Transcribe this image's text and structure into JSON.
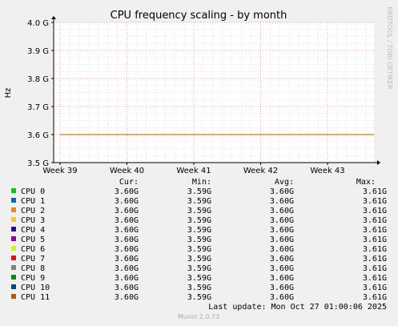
{
  "chart_data": {
    "type": "line",
    "title": "CPU frequency scaling - by month",
    "ylabel": "Hz",
    "side_label": "RRDTOOL / TOBI OETIKER",
    "ylim": [
      3.5,
      4.0
    ],
    "y_ticks": [
      {
        "value": 3.5,
        "label": "3.5 G"
      },
      {
        "value": 3.6,
        "label": "3.6 G"
      },
      {
        "value": 3.7,
        "label": "3.7 G"
      },
      {
        "value": 3.8,
        "label": "3.8 G"
      },
      {
        "value": 3.9,
        "label": "3.9 G"
      },
      {
        "value": 4.0,
        "label": "4.0 G"
      }
    ],
    "x_ticks": [
      "Week 39",
      "Week 40",
      "Week 41",
      "Week 42",
      "Week 43"
    ],
    "series_value_ghz": 3.6,
    "legend_headers": {
      "cur": "Cur:",
      "min": "Min:",
      "avg": "Avg:",
      "max": "Max:"
    },
    "series": [
      {
        "name": "CPU 0",
        "color": "#00cc00",
        "cur": "3.60G",
        "min": "3.59G",
        "avg": "3.60G",
        "max": "3.61G"
      },
      {
        "name": "CPU 1",
        "color": "#0066b3",
        "cur": "3.60G",
        "min": "3.59G",
        "avg": "3.60G",
        "max": "3.61G"
      },
      {
        "name": "CPU 2",
        "color": "#ff8000",
        "cur": "3.60G",
        "min": "3.59G",
        "avg": "3.60G",
        "max": "3.61G"
      },
      {
        "name": "CPU 3",
        "color": "#ffcc00",
        "cur": "3.60G",
        "min": "3.59G",
        "avg": "3.60G",
        "max": "3.61G"
      },
      {
        "name": "CPU 4",
        "color": "#330099",
        "cur": "3.60G",
        "min": "3.59G",
        "avg": "3.60G",
        "max": "3.61G"
      },
      {
        "name": "CPU 5",
        "color": "#990099",
        "cur": "3.60G",
        "min": "3.59G",
        "avg": "3.60G",
        "max": "3.61G"
      },
      {
        "name": "CPU 6",
        "color": "#ccff00",
        "cur": "3.60G",
        "min": "3.59G",
        "avg": "3.60G",
        "max": "3.61G"
      },
      {
        "name": "CPU 7",
        "color": "#ff0000",
        "cur": "3.60G",
        "min": "3.59G",
        "avg": "3.60G",
        "max": "3.61G"
      },
      {
        "name": "CPU 8",
        "color": "#808080",
        "cur": "3.60G",
        "min": "3.59G",
        "avg": "3.60G",
        "max": "3.61G"
      },
      {
        "name": "CPU 9",
        "color": "#008f00",
        "cur": "3.60G",
        "min": "3.59G",
        "avg": "3.60G",
        "max": "3.61G"
      },
      {
        "name": "CPU 10",
        "color": "#00487d",
        "cur": "3.60G",
        "min": "3.59G",
        "avg": "3.60G",
        "max": "3.61G"
      },
      {
        "name": "CPU 11",
        "color": "#b35a00",
        "cur": "3.60G",
        "min": "3.59G",
        "avg": "3.60G",
        "max": "3.61G"
      }
    ],
    "last_update": "Last update:  Mon Oct 27 01:00:06 2025",
    "footer": "Munin 2.0.73"
  }
}
